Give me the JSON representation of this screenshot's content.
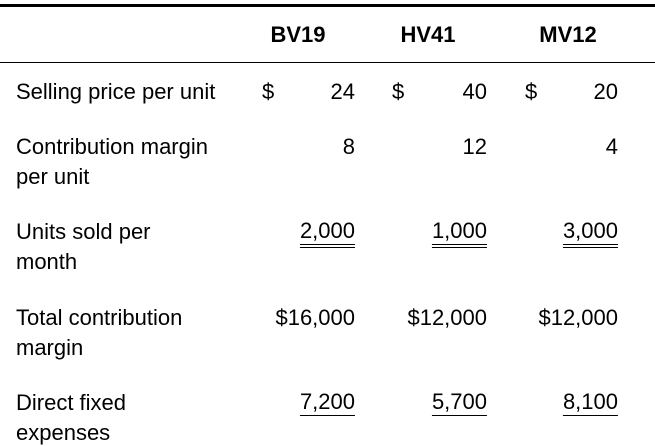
{
  "table": {
    "header": [
      "BV19",
      "HV41",
      "MV12"
    ],
    "rows": [
      {
        "label": [
          "Selling price per unit"
        ],
        "currency": "$",
        "values": [
          "24",
          "40",
          "20"
        ]
      },
      {
        "label": [
          "Contribution margin",
          "per unit"
        ],
        "values": [
          "8",
          "12",
          "4"
        ]
      },
      {
        "label": [
          "Units sold per",
          "month"
        ],
        "values": [
          "2,000",
          "1,000",
          "3,000"
        ],
        "underline": "double"
      },
      {
        "label": [
          "Total contribution",
          "margin"
        ],
        "values": [
          "$16,000",
          "$12,000",
          "$12,000"
        ]
      },
      {
        "label": [
          "Direct fixed",
          "expenses"
        ],
        "values": [
          "7,200",
          "5,700",
          "8,100"
        ],
        "underline": "single"
      }
    ]
  }
}
